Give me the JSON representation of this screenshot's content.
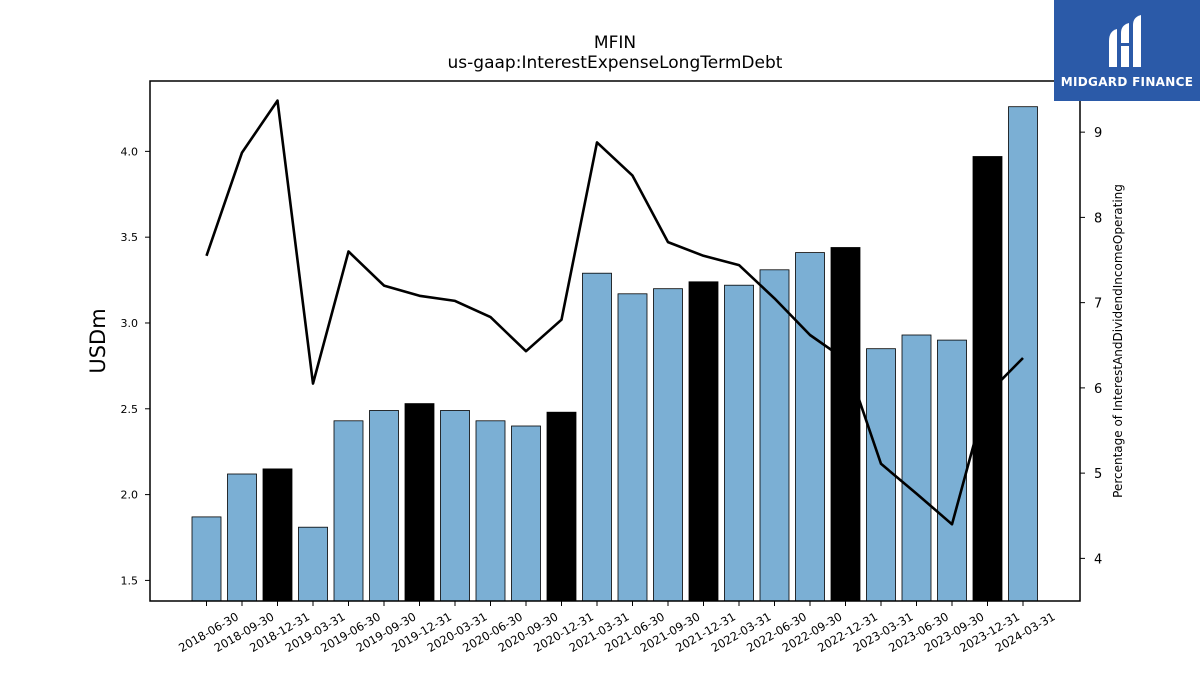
{
  "logo": {
    "text": "MIDGARD FINANCE",
    "background": "#2b5aa8"
  },
  "chart_data": {
    "type": "bar",
    "title": "MFIN",
    "subtitle": "us-gaap:InterestExpenseLongTermDebt",
    "ylabel": "USDm",
    "y2label": "Percentage of InterestAndDividendIncomeOperating",
    "ylim": [
      1.38,
      4.41
    ],
    "y2lim": [
      3.5,
      9.6
    ],
    "yticks": [
      "1.5",
      "2.0",
      "2.5",
      "3.0",
      "3.5",
      "4.0"
    ],
    "y2ticks": [
      "4",
      "5",
      "6",
      "7",
      "8",
      "9"
    ],
    "categories": [
      "2018-06-30",
      "2018-09-30",
      "2018-12-31",
      "2019-03-31",
      "2019-06-30",
      "2019-09-30",
      "2019-12-31",
      "2020-03-31",
      "2020-06-30",
      "2020-09-30",
      "2020-12-31",
      "2021-03-31",
      "2021-06-30",
      "2021-09-30",
      "2021-12-31",
      "2022-03-31",
      "2022-06-30",
      "2022-09-30",
      "2022-12-31",
      "2023-03-31",
      "2023-06-30",
      "2023-09-30",
      "2023-12-31",
      "2024-03-31"
    ],
    "series": [
      {
        "type": "bar",
        "values": [
          1.87,
          2.12,
          2.15,
          1.81,
          2.43,
          2.49,
          2.53,
          2.49,
          2.43,
          2.4,
          2.48,
          3.29,
          3.17,
          3.2,
          3.24,
          3.22,
          3.31,
          3.41,
          3.44,
          2.85,
          2.93,
          2.9,
          3.97,
          4.26
        ],
        "highlight": [
          false,
          false,
          true,
          false,
          false,
          false,
          true,
          false,
          false,
          false,
          true,
          false,
          false,
          false,
          true,
          false,
          false,
          false,
          true,
          false,
          false,
          false,
          true,
          false
        ]
      },
      {
        "type": "line",
        "axis": "right",
        "values": [
          7.55,
          8.76,
          9.37,
          6.05,
          7.6,
          7.2,
          7.08,
          7.02,
          6.83,
          6.43,
          6.8,
          8.88,
          8.49,
          7.71,
          7.55,
          7.44,
          7.05,
          6.62,
          6.33,
          5.11,
          4.76,
          4.4,
          5.93,
          6.35
        ]
      }
    ],
    "colors": {
      "bar": "#7bafd4",
      "bar_highlight": "#000000",
      "line": "#000000"
    },
    "grid": false,
    "legend": "none"
  }
}
